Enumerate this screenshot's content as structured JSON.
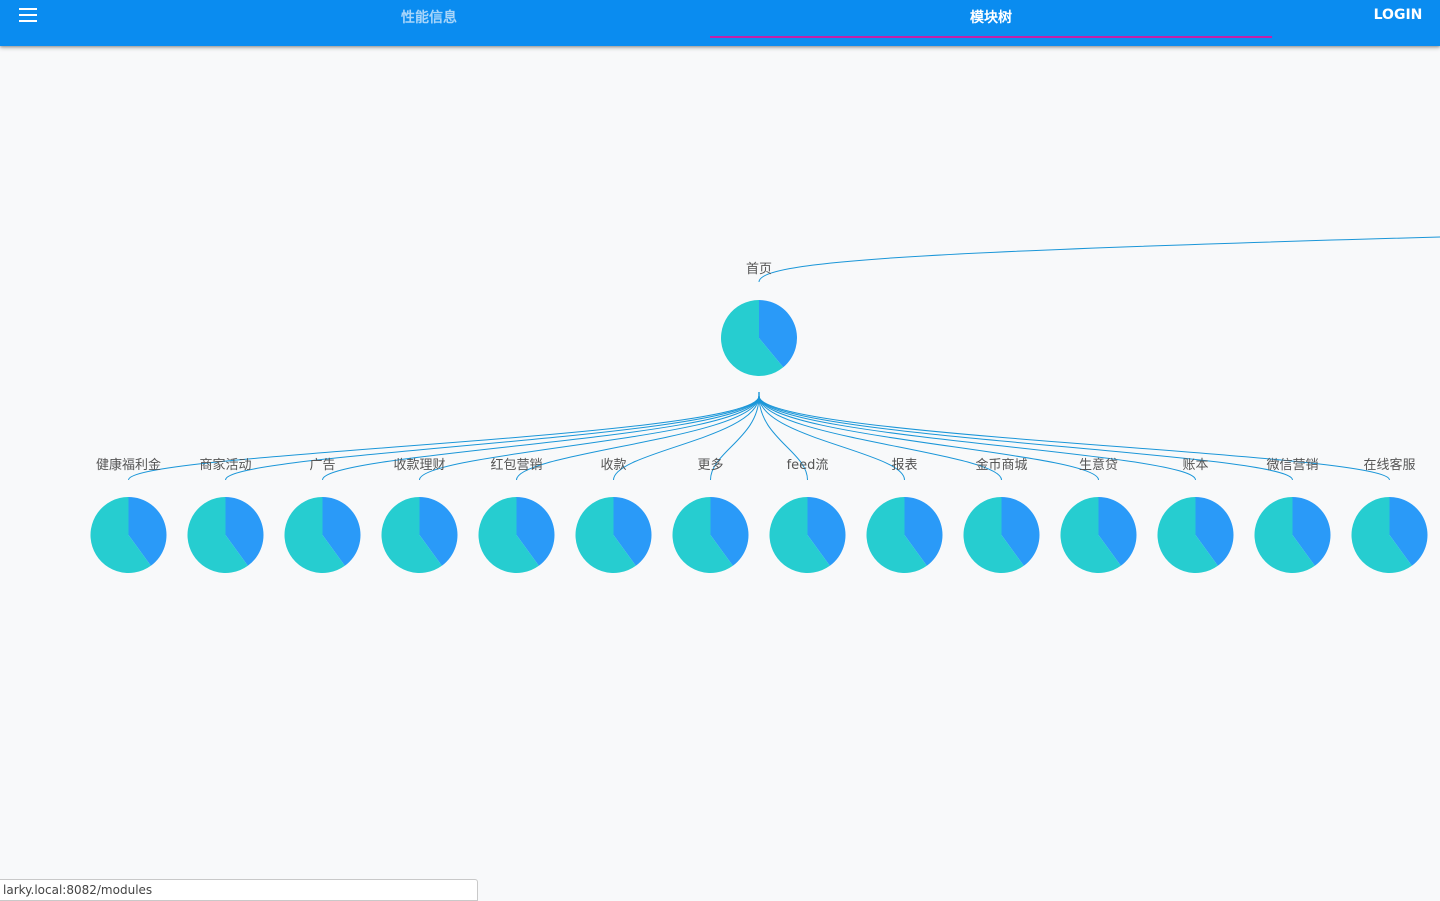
{
  "appbar": {
    "background": "#0a8cf0",
    "menu_icon": "hamburger-menu-icon",
    "tabs": [
      {
        "label": "性能信息",
        "active": false
      },
      {
        "label": "模块树",
        "active": true
      }
    ],
    "indicator_color": "#c51fa8",
    "login_label": "LOGIN"
  },
  "tree": {
    "root": {
      "label": "首页",
      "pie": [
        0.39,
        0.61
      ]
    },
    "children": [
      {
        "label": "健康福利金",
        "pie": [
          0.4,
          0.6
        ]
      },
      {
        "label": "商家活动",
        "pie": [
          0.4,
          0.6
        ]
      },
      {
        "label": "广告",
        "pie": [
          0.4,
          0.6
        ]
      },
      {
        "label": "收款理财",
        "pie": [
          0.4,
          0.6
        ]
      },
      {
        "label": "红包营销",
        "pie": [
          0.4,
          0.6
        ]
      },
      {
        "label": "收款",
        "pie": [
          0.4,
          0.6
        ]
      },
      {
        "label": "更多",
        "pie": [
          0.4,
          0.6
        ]
      },
      {
        "label": "feed流",
        "pie": [
          0.4,
          0.6
        ]
      },
      {
        "label": "报表",
        "pie": [
          0.4,
          0.6
        ]
      },
      {
        "label": "金币商城",
        "pie": [
          0.4,
          0.6
        ]
      },
      {
        "label": "生意贷",
        "pie": [
          0.4,
          0.6
        ]
      },
      {
        "label": "账本",
        "pie": [
          0.4,
          0.6
        ]
      },
      {
        "label": "微信营销",
        "pie": [
          0.4,
          0.6
        ]
      },
      {
        "label": "在线客服",
        "pie": [
          0.4,
          0.6
        ]
      }
    ],
    "colors": {
      "slice_a": "#2a9af8",
      "slice_b": "#26cdd0",
      "link": "#1a96d8"
    }
  },
  "status": {
    "url": "larky.local:8082/modules"
  }
}
